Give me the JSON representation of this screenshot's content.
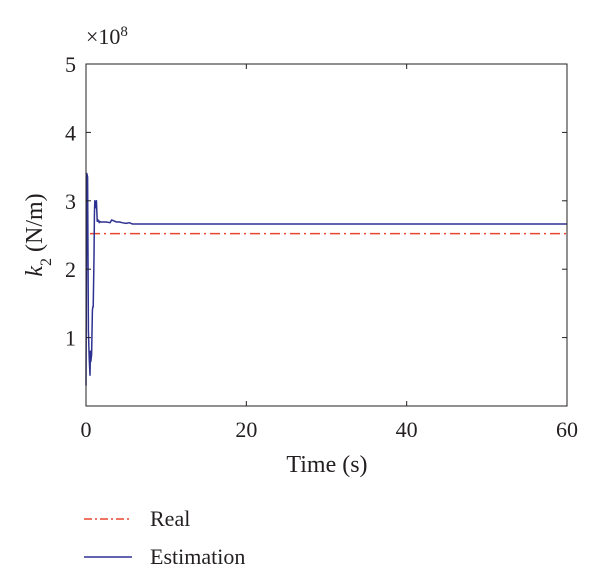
{
  "chart_data": {
    "type": "line",
    "xlabel": "Time (s)",
    "ylabel_base": "k",
    "ylabel_sub": "2",
    "ylabel_unit": " (N/m)",
    "multiplier": "×10",
    "multiplier_exp": "8",
    "xlim": [
      0,
      60
    ],
    "ylim": [
      0,
      5
    ],
    "xticks": [
      0,
      20,
      40,
      60
    ],
    "yticks": [
      1,
      2,
      3,
      4,
      5
    ],
    "legend_position": "bottom-left",
    "series": [
      {
        "name": "Real",
        "color": "#e8452c",
        "style": "dash-dot",
        "x": [
          0.5,
          60
        ],
        "y": [
          2.52,
          2.52
        ]
      },
      {
        "name": "Estimation",
        "color": "#2e3192",
        "style": "solid",
        "x": [
          0,
          0.1,
          0.2,
          0.3,
          0.4,
          0.5,
          0.55,
          0.6,
          0.7,
          0.8,
          0.85,
          0.9,
          1.0,
          1.05,
          1.1,
          1.15,
          1.2,
          1.3,
          1.35,
          1.4,
          1.5,
          1.6,
          1.65,
          1.7,
          1.8,
          2.0,
          2.5,
          3.0,
          3.2,
          3.4,
          3.6,
          3.8,
          4.2,
          4.5,
          5.0,
          5.4,
          5.8,
          6.0,
          8,
          60
        ],
        "y": [
          0.3,
          3.4,
          3.35,
          1.1,
          0.7,
          0.45,
          0.8,
          0.65,
          0.75,
          1.4,
          1.45,
          1.45,
          2.2,
          2.8,
          3.0,
          2.95,
          2.9,
          3.0,
          2.85,
          2.7,
          2.72,
          2.7,
          2.68,
          2.7,
          2.69,
          2.69,
          2.69,
          2.68,
          2.72,
          2.71,
          2.7,
          2.69,
          2.69,
          2.68,
          2.67,
          2.68,
          2.66,
          2.66,
          2.66,
          2.66
        ]
      }
    ]
  }
}
